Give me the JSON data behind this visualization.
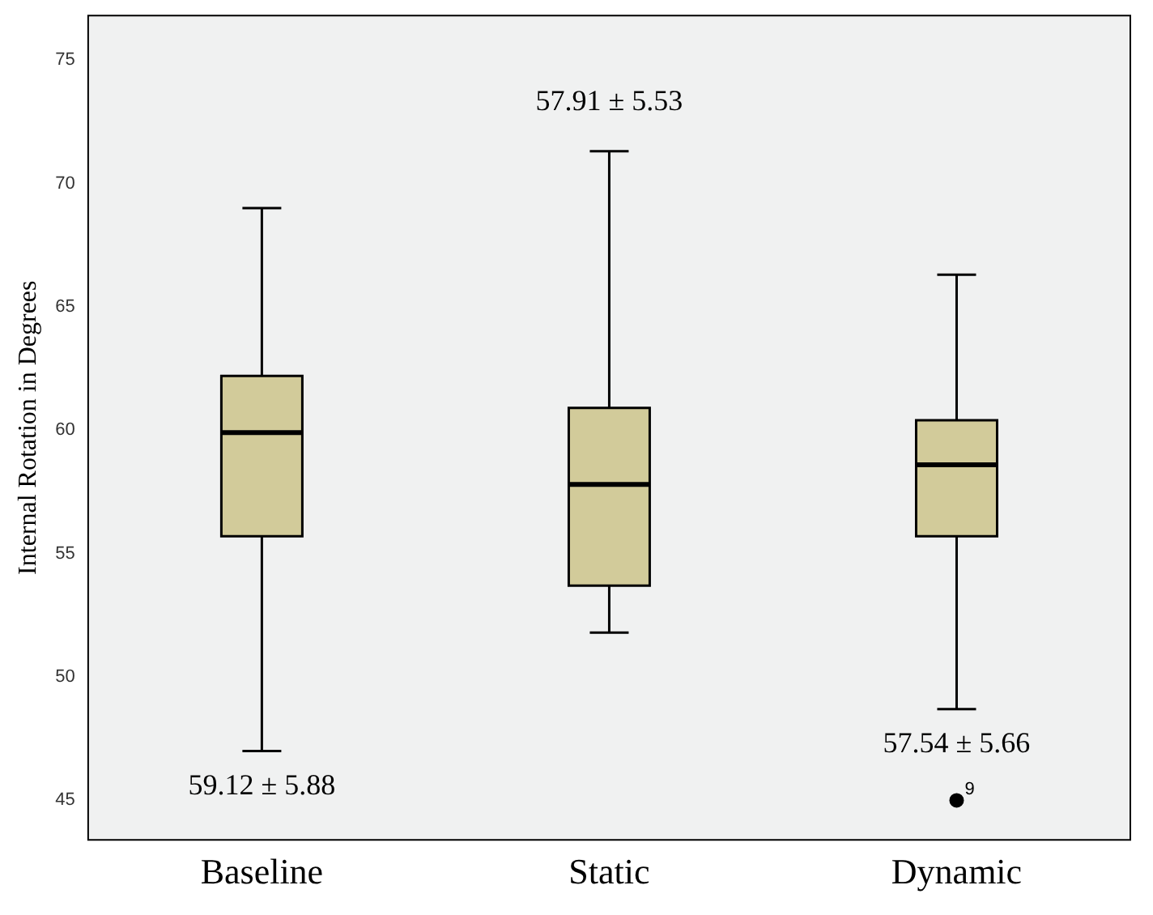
{
  "chart_data": {
    "type": "box",
    "ylabel": "Internal Rotation in Degrees",
    "categories": [
      "Baseline",
      "Static",
      "Dynamic"
    ],
    "boxes": [
      {
        "low": 47.0,
        "q1": 55.7,
        "median": 59.9,
        "q3": 62.2,
        "high": 69.0
      },
      {
        "low": 51.8,
        "q1": 53.7,
        "median": 57.8,
        "q3": 60.9,
        "high": 71.3
      },
      {
        "low": 48.7,
        "q1": 55.7,
        "median": 58.6,
        "q3": 60.4,
        "high": 66.3,
        "outliers": [
          45.0
        ]
      }
    ],
    "color": "#d2cb9a",
    "ylim": [
      43.4,
      76.8
    ],
    "yticks": [
      45,
      50,
      55,
      60,
      65,
      70,
      75
    ],
    "grid": false,
    "legend": false,
    "annotations": [
      "59.12 ± 5.88",
      "57.91 ± 5.53",
      "57.54 ± 5.66",
      "9"
    ]
  }
}
